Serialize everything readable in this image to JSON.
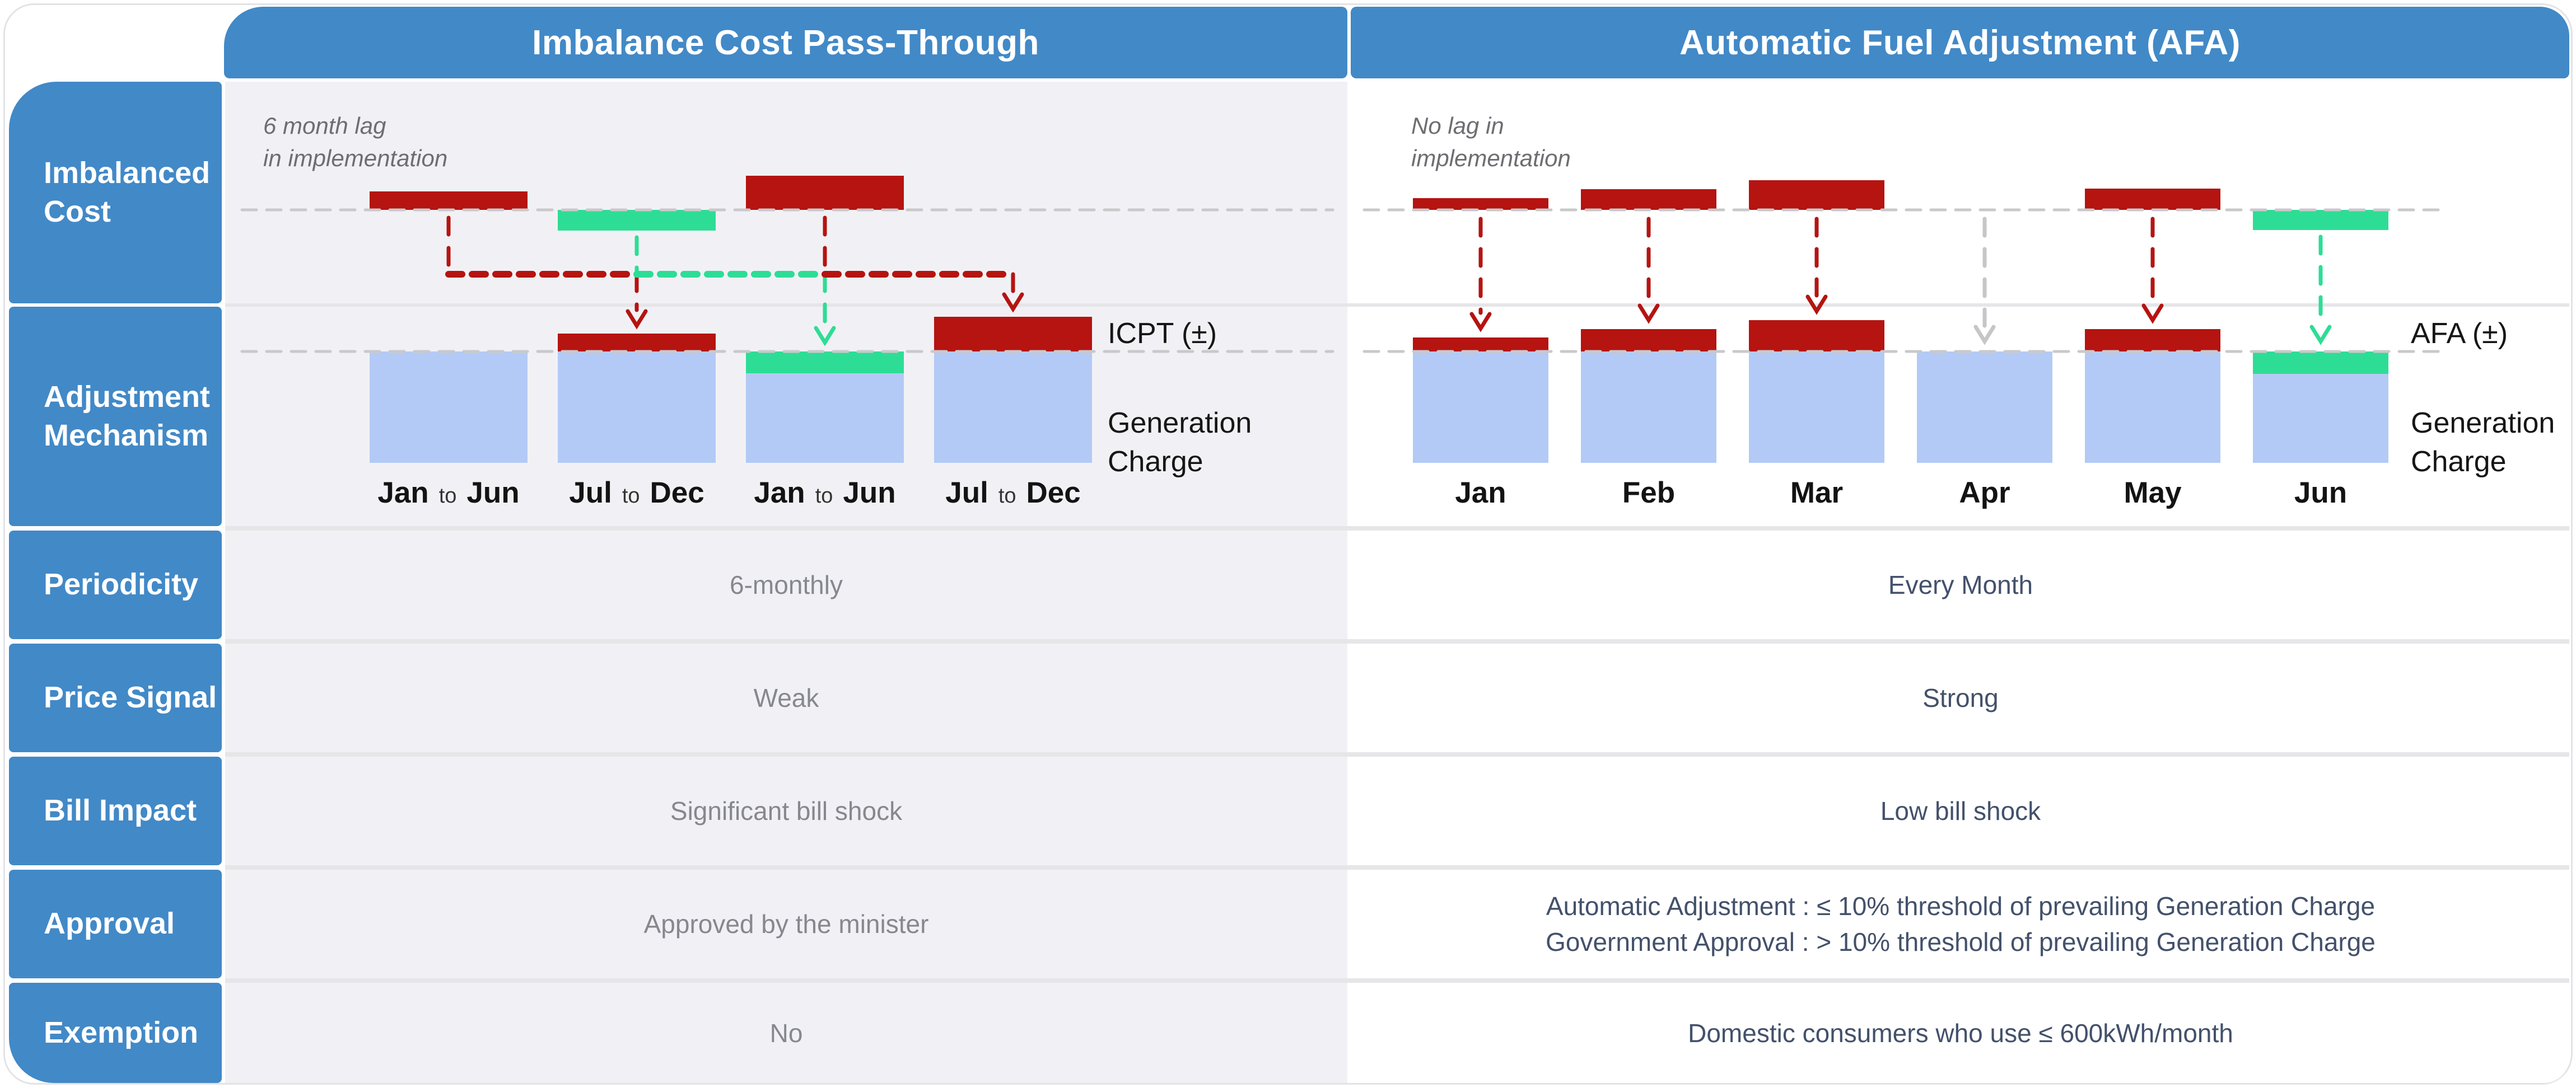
{
  "headers": {
    "left": "Imbalance Cost Pass-Through",
    "right": "Automatic Fuel Adjustment (AFA)"
  },
  "sidebar": {
    "labels": [
      "Imbalanced Cost",
      "Adjustment Mechanism",
      "Periodicity",
      "Price Signal",
      "Bill Impact",
      "Approval",
      "Exemption"
    ]
  },
  "rows": [
    {
      "id": "periodicity",
      "left": "6-monthly",
      "right": "Every Month"
    },
    {
      "id": "price-signal",
      "left": "Weak",
      "right": "Strong"
    },
    {
      "id": "bill-impact",
      "left": "Significant bill shock",
      "right": "Low bill shock"
    },
    {
      "id": "approval",
      "left": "Approved by the minister",
      "right": "Automatic Adjustment : ≤ 10% threshold of prevailing Generation Charge\nGovernment Approval : > 10% threshold of prevailing Generation Charge"
    },
    {
      "id": "exemption",
      "left": "No",
      "right": "Domestic consumers who use ≤ 600kWh/month"
    }
  ],
  "icpt_chart": {
    "note": "6 month lag\nin implementation",
    "adjustment_label": "ICPT (±)",
    "base_label": "Generation\nCharge",
    "periods": [
      {
        "from": "Jan",
        "mid": "to",
        "to": "Jun"
      },
      {
        "from": "Jul",
        "mid": "to",
        "to": "Dec"
      },
      {
        "from": "Jan",
        "mid": "to",
        "to": "Jun"
      },
      {
        "from": "Jul",
        "mid": "to",
        "to": "Dec"
      }
    ],
    "imbalance_bars": [
      {
        "slot": 0,
        "kind": "cost",
        "height": 33
      },
      {
        "slot": 1,
        "kind": "saving",
        "height": 37
      },
      {
        "slot": 2,
        "kind": "cost",
        "height": 61
      }
    ],
    "adjustment_caps": [
      {
        "slot": 1,
        "kind": "surcharge",
        "height": 32
      },
      {
        "slot": 2,
        "kind": "rebate",
        "height": 39
      },
      {
        "slot": 3,
        "kind": "surcharge",
        "height": 62
      }
    ],
    "arrows": [
      {
        "from_slot": 0,
        "to_slot": 1,
        "kind": "cost"
      },
      {
        "from_slot": 1,
        "to_slot": 2,
        "kind": "saving"
      },
      {
        "from_slot": 2,
        "to_slot": 3,
        "kind": "cost"
      }
    ]
  },
  "afa_chart": {
    "note": "No lag in\nimplementation",
    "adjustment_label": "AFA (±)",
    "base_label": "Generation\nCharge",
    "months": [
      "Jan",
      "Feb",
      "Mar",
      "Apr",
      "May",
      "Jun"
    ],
    "imbalance_bars": [
      {
        "slot": 0,
        "kind": "cost",
        "height": 21
      },
      {
        "slot": 1,
        "kind": "cost",
        "height": 37
      },
      {
        "slot": 2,
        "kind": "cost",
        "height": 53
      },
      {
        "slot": 4,
        "kind": "cost",
        "height": 38
      },
      {
        "slot": 5,
        "kind": "saving",
        "height": 36
      }
    ],
    "adjustment_caps": [
      {
        "slot": 0,
        "kind": "surcharge",
        "height": 25
      },
      {
        "slot": 1,
        "kind": "surcharge",
        "height": 40
      },
      {
        "slot": 2,
        "kind": "surcharge",
        "height": 56
      },
      {
        "slot": 4,
        "kind": "surcharge",
        "height": 40
      },
      {
        "slot": 5,
        "kind": "rebate",
        "height": 40
      }
    ],
    "arrows": [
      {
        "slot": 0,
        "kind": "cost"
      },
      {
        "slot": 1,
        "kind": "cost"
      },
      {
        "slot": 2,
        "kind": "cost"
      },
      {
        "slot": 3,
        "kind": "none"
      },
      {
        "slot": 4,
        "kind": "cost"
      },
      {
        "slot": 5,
        "kind": "saving"
      }
    ]
  },
  "colors": {
    "brand_blue": "#4289C7",
    "cost_red": "#B51411",
    "saving_green": "#2EDD95",
    "base_bar_blue": "#B3CAF6",
    "left_cell_bg": "#F1F1F5",
    "right_cell_bg": "#FFFFFF",
    "dashed_line": "#C9C9CC",
    "neutral_arrow": "#C6C6C9"
  }
}
